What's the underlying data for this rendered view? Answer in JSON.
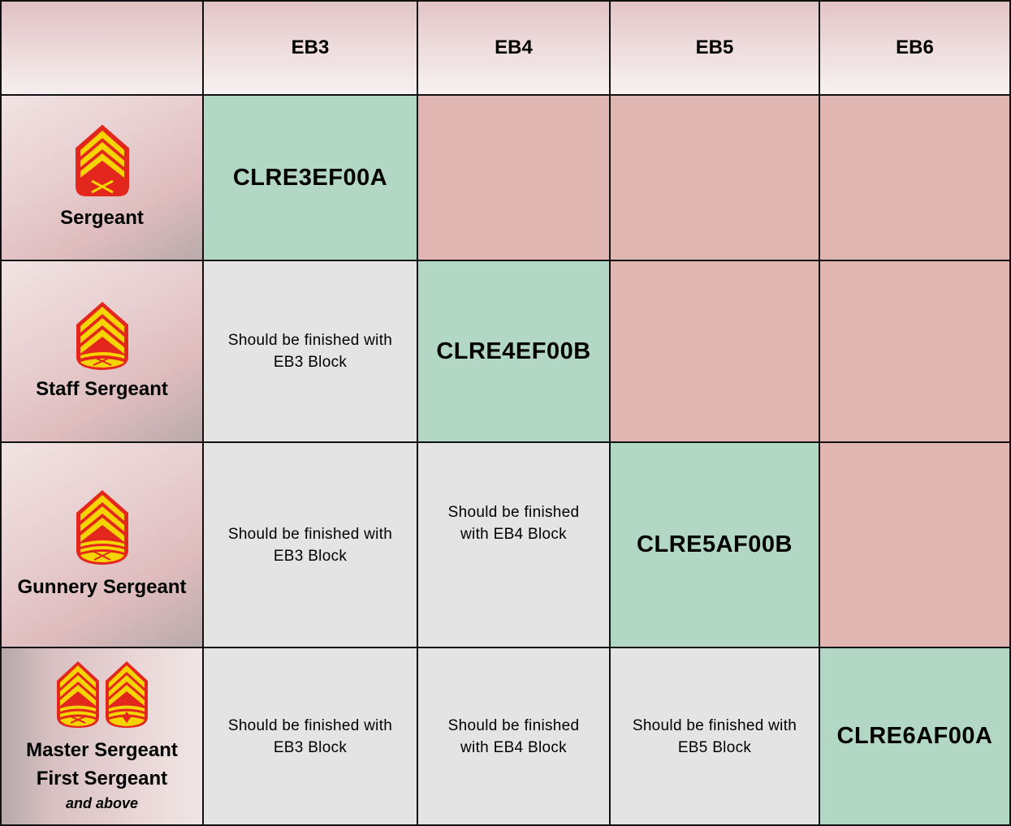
{
  "header": {
    "columns": [
      "EB3",
      "EB4",
      "EB5",
      "EB6"
    ]
  },
  "rows": [
    {
      "rank": "Sergeant",
      "insignia": [
        "sergeant-chevron-icon"
      ],
      "cells": [
        {
          "status": "current",
          "text": "CLRE3EF00A"
        },
        {
          "status": "not-applicable",
          "text": ""
        },
        {
          "status": "not-applicable",
          "text": ""
        },
        {
          "status": "not-applicable",
          "text": ""
        }
      ]
    },
    {
      "rank": "Staff Sergeant",
      "insignia": [
        "staff-sergeant-chevron-icon"
      ],
      "cells": [
        {
          "status": "completed",
          "text": "Should be finished with EB3 Block"
        },
        {
          "status": "current",
          "text": "CLRE4EF00B"
        },
        {
          "status": "not-applicable",
          "text": ""
        },
        {
          "status": "not-applicable",
          "text": ""
        }
      ]
    },
    {
      "rank": "Gunnery Sergeant",
      "insignia": [
        "gunnery-sergeant-chevron-icon"
      ],
      "cells": [
        {
          "status": "completed",
          "text": "Should be finished with EB3 Block"
        },
        {
          "status": "completed",
          "text": "Should be finished with EB4 Block"
        },
        {
          "status": "current",
          "text": "CLRE5AF00B"
        },
        {
          "status": "not-applicable",
          "text": ""
        }
      ]
    },
    {
      "rank": "Master Sergeant",
      "rank_line2": "First Sergeant",
      "rank_sub": "and above",
      "insignia": [
        "master-sergeant-chevron-icon",
        "first-sergeant-chevron-icon"
      ],
      "cells": [
        {
          "status": "completed",
          "text": "Should be finished with EB3 Block"
        },
        {
          "status": "completed",
          "text": "Should be finished with EB4 Block"
        },
        {
          "status": "completed",
          "text": "Should be finished with EB5 Block"
        },
        {
          "status": "current",
          "text": "CLRE6AF00A"
        }
      ]
    }
  ],
  "colors": {
    "current": "#b2d8c5",
    "not-applicable": "#dfb6b2",
    "completed": "#e4e4e4",
    "chevron_gold": "#f5d400",
    "chevron_red": "#e3271d"
  }
}
